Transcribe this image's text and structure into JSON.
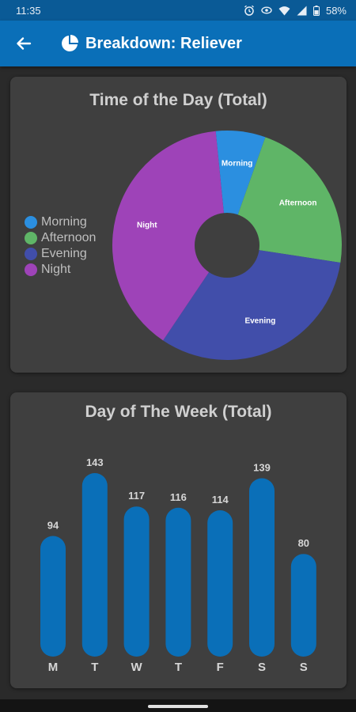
{
  "status_bar": {
    "time": "11:35",
    "battery": "58%",
    "icons": [
      "alarm-icon",
      "eye-icon",
      "wifi-icon",
      "signal-icon",
      "battery-icon"
    ]
  },
  "app_bar": {
    "title": "Breakdown: Reliever",
    "back_icon": "arrow-left-icon",
    "logo_icon": "pie-logo-icon",
    "color": "#0a6fb8"
  },
  "time_of_day": {
    "title": "Time of the Day (Total)",
    "legend": [
      {
        "label": "Morning",
        "color": "#2b8fe0"
      },
      {
        "label": "Afternoon",
        "color": "#5fb567"
      },
      {
        "label": "Evening",
        "color": "#414eaa"
      },
      {
        "label": "Night",
        "color": "#9e43b8"
      }
    ]
  },
  "day_of_week": {
    "title": "Day of The Week (Total)"
  },
  "chart_data": [
    {
      "type": "pie",
      "title": "Time of the Day (Total)",
      "categories": [
        "Morning",
        "Afternoon",
        "Evening",
        "Night"
      ],
      "values": [
        7,
        22,
        32,
        39
      ],
      "colors": [
        "#2b8fe0",
        "#5fb567",
        "#414eaa",
        "#9e43b8"
      ],
      "legend": "left",
      "donut": true
    },
    {
      "type": "bar",
      "title": "Day of The Week (Total)",
      "categories": [
        "M",
        "T",
        "W",
        "T",
        "F",
        "S",
        "S"
      ],
      "values": [
        94,
        143,
        117,
        116,
        114,
        139,
        80
      ],
      "color": "#0a6fb8",
      "grid": false
    }
  ]
}
